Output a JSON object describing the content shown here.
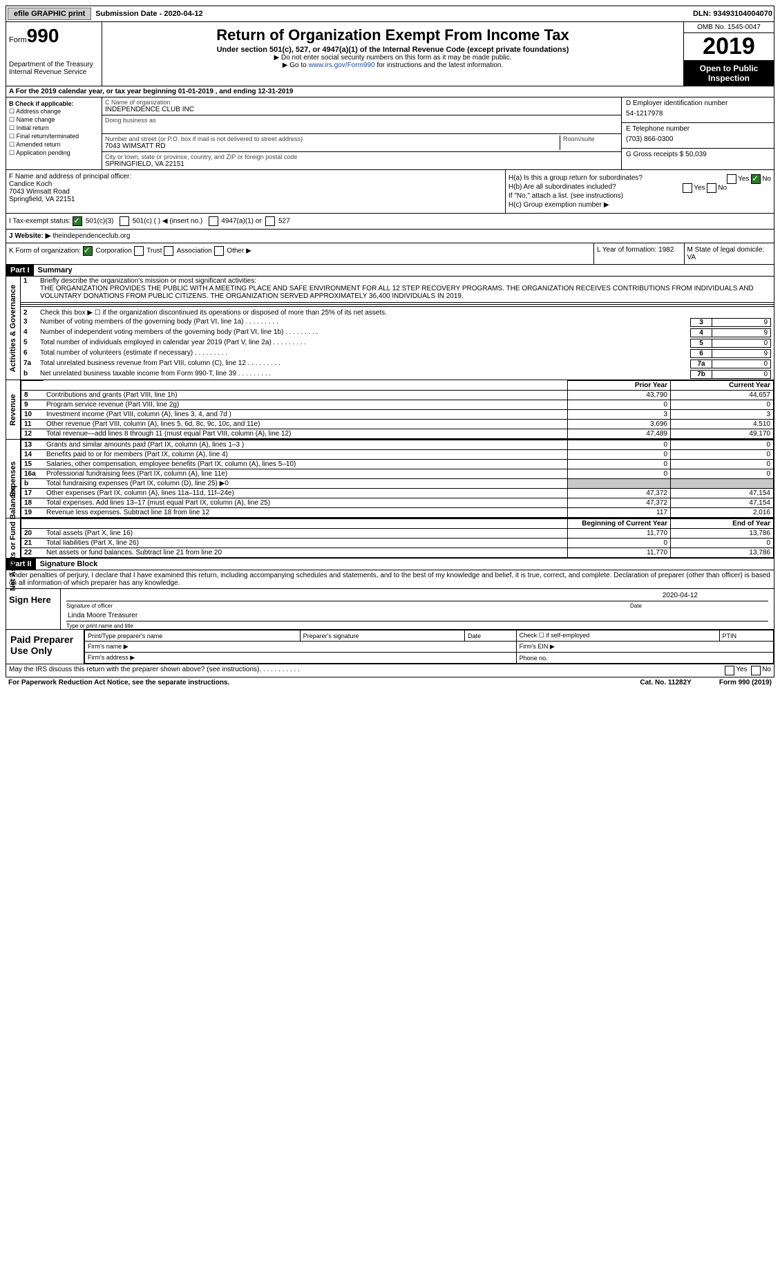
{
  "topbar": {
    "efile": "efile GRAPHIC print",
    "subdate_label": "Submission Date - ",
    "subdate": "2020-04-12",
    "dln_label": "DLN: ",
    "dln": "93493104004070"
  },
  "header": {
    "form_label": "Form",
    "form_num": "990",
    "dept": "Department of the Treasury\nInternal Revenue Service",
    "title": "Return of Organization Exempt From Income Tax",
    "subtitle": "Under section 501(c), 527, or 4947(a)(1) of the Internal Revenue Code (except private foundations)",
    "note1": "▶ Do not enter social security numbers on this form as it may be made public.",
    "note2a": "▶ Go to ",
    "note2link": "www.irs.gov/Form990",
    "note2b": " for instructions and the latest information.",
    "omb": "OMB No. 1545-0047",
    "year": "2019",
    "open": "Open to Public Inspection"
  },
  "tyline": "A For the 2019 calendar year, or tax year beginning 01-01-2019   , and ending 12-31-2019",
  "boxB": {
    "title": "B Check if applicable:",
    "items": [
      "Address change",
      "Name change",
      "Initial return",
      "Final return/terminated",
      "Amended return",
      "Application pending"
    ]
  },
  "boxC": {
    "name_lab": "C Name of organization",
    "name": "INDEPENDENCE CLUB INC",
    "dba_lab": "Doing business as",
    "dba": "",
    "addr_lab": "Number and street (or P.O. box if mail is not delivered to street address)",
    "room_lab": "Room/suite",
    "addr": "7043 WIMSATT RD",
    "city_lab": "City or town, state or province, country, and ZIP or foreign postal code",
    "city": "SPRINGFIELD, VA  22151"
  },
  "boxD": {
    "ein_lab": "D Employer identification number",
    "ein": "54-1217978",
    "tel_lab": "E Telephone number",
    "tel": "(703) 866-0300",
    "gross_lab": "G Gross receipts $ ",
    "gross": "50,039"
  },
  "boxF": {
    "lab": "F  Name and address of principal officer:",
    "name": "Candice Koch",
    "addr1": "7043 Wimsatt Road",
    "addr2": "Springfield, VA  22151"
  },
  "boxH": {
    "ha": "H(a)  Is this a group return for subordinates?",
    "hb": "H(b)  Are all subordinates included?",
    "note": "If \"No,\" attach a list. (see instructions)",
    "hc": "H(c)  Group exemption number ▶",
    "yes": "Yes",
    "no": "No"
  },
  "taxexempt": {
    "lab": "I   Tax-exempt status:",
    "c3": "501(c)(3)",
    "c": "501(c) (  ) ◀ (insert no.)",
    "a1": "4947(a)(1) or",
    "s527": "527"
  },
  "website": {
    "lab": "J   Website: ▶",
    "val": "  theindependenceclub.org"
  },
  "formorg": {
    "lab": "K Form of organization:",
    "corp": "Corporation",
    "trust": "Trust",
    "assoc": "Association",
    "other": "Other ▶"
  },
  "LM": {
    "L": "L Year of formation: 1982",
    "M": "M State of legal domicile: VA"
  },
  "part1": {
    "label": "Part I",
    "title": "Summary"
  },
  "gov": {
    "label": "Activities & Governance",
    "l1_lab": "1",
    "l1_t": "Briefly describe the organization's mission or most significant activities:",
    "l1_desc": "THE ORGANIZATION PROVIDES THE PUBLIC WITH A MEETING PLACE AND SAFE ENVIRONMENT FOR ALL 12 STEP RECOVERY PROGRAMS. THE ORGANIZATION RECEIVES CONTRIBUTIONS FROM INDIVIDUALS AND VOLUNTARY DONATIONS FROM PUBLIC CITIZENS. THE ORGANIZATION SERVED APPROXIMATELY 36,400 INDIVIDUALS IN 2019.",
    "l2": "Check this box ▶ ☐  if the organization discontinued its operations or disposed of more than 25% of its net assets.",
    "rows": [
      {
        "n": "3",
        "t": "Number of voting members of the governing body (Part VI, line 1a)",
        "box": "3",
        "v": "9"
      },
      {
        "n": "4",
        "t": "Number of independent voting members of the governing body (Part VI, line 1b)",
        "box": "4",
        "v": "9"
      },
      {
        "n": "5",
        "t": "Total number of individuals employed in calendar year 2019 (Part V, line 2a)",
        "box": "5",
        "v": "0"
      },
      {
        "n": "6",
        "t": "Total number of volunteers (estimate if necessary)",
        "box": "6",
        "v": "9"
      },
      {
        "n": "7a",
        "t": "Total unrelated business revenue from Part VIII, column (C), line 12",
        "box": "7a",
        "v": "0"
      },
      {
        "n": "b",
        "t": "Net unrelated business taxable income from Form 990-T, line 39",
        "box": "7b",
        "v": "0"
      }
    ]
  },
  "revexp_hdr": {
    "prior": "Prior Year",
    "curr": "Current Year"
  },
  "revenue": {
    "label": "Revenue",
    "rows": [
      {
        "n": "8",
        "t": "Contributions and grants (Part VIII, line 1h)",
        "p": "43,790",
        "c": "44,657"
      },
      {
        "n": "9",
        "t": "Program service revenue (Part VIII, line 2g)",
        "p": "0",
        "c": "0"
      },
      {
        "n": "10",
        "t": "Investment income (Part VIII, column (A), lines 3, 4, and 7d )",
        "p": "3",
        "c": "3"
      },
      {
        "n": "11",
        "t": "Other revenue (Part VIII, column (A), lines 5, 6d, 8c, 9c, 10c, and 11e)",
        "p": "3,696",
        "c": "4,510"
      },
      {
        "n": "12",
        "t": "Total revenue—add lines 8 through 11 (must equal Part VIII, column (A), line 12)",
        "p": "47,489",
        "c": "49,170"
      }
    ]
  },
  "expenses": {
    "label": "Expenses",
    "rows": [
      {
        "n": "13",
        "t": "Grants and similar amounts paid (Part IX, column (A), lines 1–3 )",
        "p": "0",
        "c": "0"
      },
      {
        "n": "14",
        "t": "Benefits paid to or for members (Part IX, column (A), line 4)",
        "p": "0",
        "c": "0"
      },
      {
        "n": "15",
        "t": "Salaries, other compensation, employee benefits (Part IX, column (A), lines 5–10)",
        "p": "0",
        "c": "0"
      },
      {
        "n": "16a",
        "t": "Professional fundraising fees (Part IX, column (A), line 11e)",
        "p": "0",
        "c": "0"
      },
      {
        "n": "b",
        "t": "Total fundraising expenses (Part IX, column (D), line 25) ▶0",
        "p": "grey",
        "c": "grey"
      },
      {
        "n": "17",
        "t": "Other expenses (Part IX, column (A), lines 11a–11d, 11f–24e)",
        "p": "47,372",
        "c": "47,154"
      },
      {
        "n": "18",
        "t": "Total expenses. Add lines 13–17 (must equal Part IX, column (A), line 25)",
        "p": "47,372",
        "c": "47,154"
      },
      {
        "n": "19",
        "t": "Revenue less expenses. Subtract line 18 from line 12",
        "p": "117",
        "c": "2,016"
      }
    ]
  },
  "netassets": {
    "label": "Net Assets or Fund Balances",
    "hdr_p": "Beginning of Current Year",
    "hdr_c": "End of Year",
    "rows": [
      {
        "n": "20",
        "t": "Total assets (Part X, line 16)",
        "p": "11,770",
        "c": "13,786"
      },
      {
        "n": "21",
        "t": "Total liabilities (Part X, line 26)",
        "p": "0",
        "c": "0"
      },
      {
        "n": "22",
        "t": "Net assets or fund balances. Subtract line 21 from line 20",
        "p": "11,770",
        "c": "13,786"
      }
    ]
  },
  "part2": {
    "label": "Part II",
    "title": "Signature Block",
    "perjury": "Under penalties of perjury, I declare that I have examined this return, including accompanying schedules and statements, and to the best of my knowledge and belief, it is true, correct, and complete. Declaration of preparer (other than officer) is based on all information of which preparer has any knowledge.",
    "sign_here": "Sign Here",
    "sig_officer": "Signature of officer",
    "date": "Date",
    "date_val": "2020-04-12",
    "name_title": "Linda Moore  Treasurer",
    "name_title_lab": "Type or print name and title"
  },
  "prep": {
    "label": "Paid Preparer Use Only",
    "pt_name": "Print/Type preparer's name",
    "sig": "Preparer's signature",
    "date": "Date",
    "check": "Check ☐ if self-employed",
    "ptin": "PTIN",
    "firm_name": "Firm's name   ▶",
    "firm_ein": "Firm's EIN ▶",
    "firm_addr": "Firm's address ▶",
    "phone": "Phone no."
  },
  "foot": {
    "irs": "May the IRS discuss this return with the preparer shown above? (see instructions)",
    "yes": "Yes",
    "no": "No",
    "pra": "For Paperwork Reduction Act Notice, see the separate instructions.",
    "cat": "Cat. No. 11282Y",
    "form": "Form 990 (2019)"
  }
}
